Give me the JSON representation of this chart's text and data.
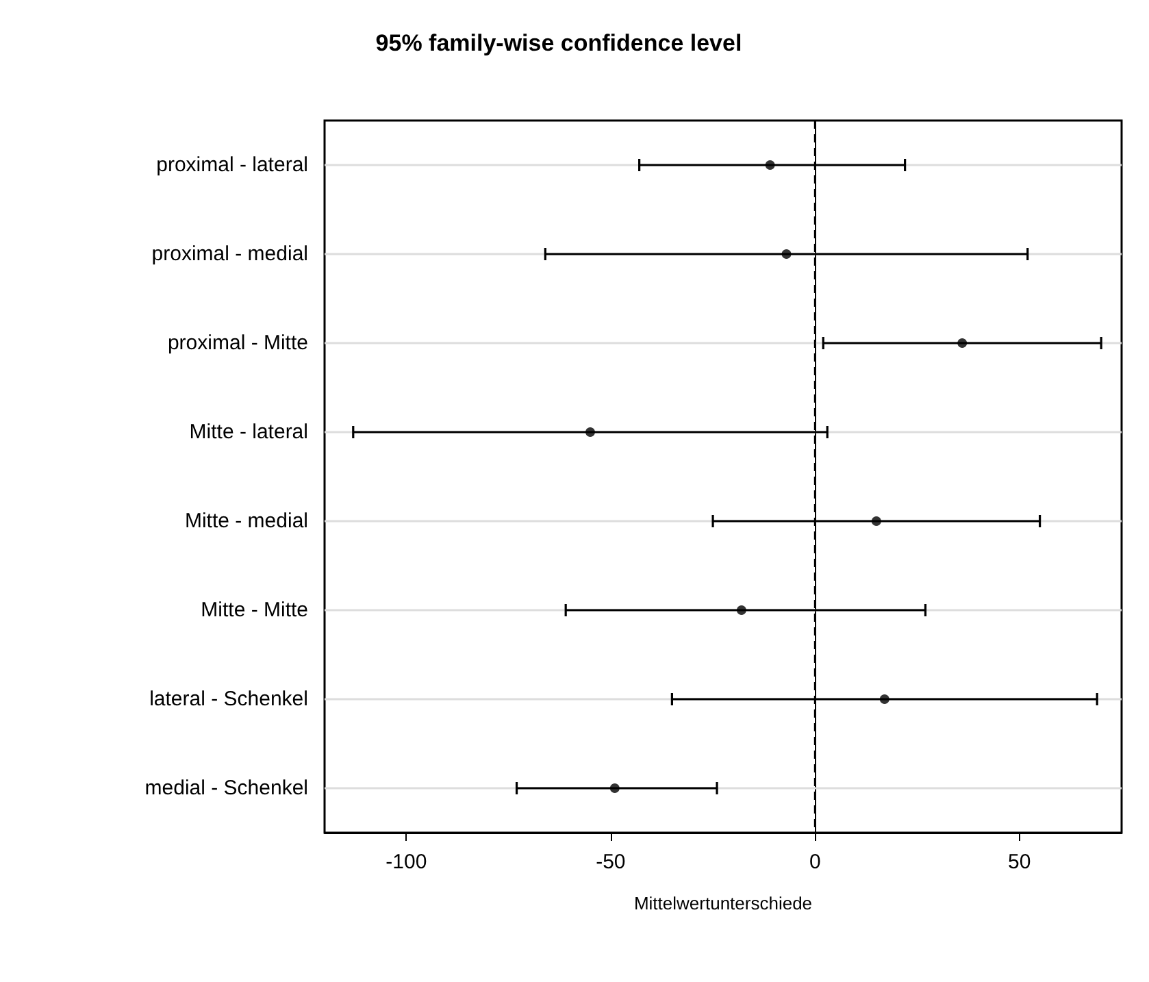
{
  "chart_data": {
    "type": "scatter",
    "orientation": "horizontal",
    "title": "95% family-wise confidence level",
    "xlabel": "Mittelwertunterschiede",
    "categories": [
      "proximal - lateral",
      "proximal - medial",
      "proximal - Mitte",
      "Mitte - lateral",
      "Mitte - medial",
      "Mitte - Mitte",
      "lateral - Schenkel",
      "medial - Schenkel"
    ],
    "values": [
      -11,
      -7,
      36,
      -55,
      15,
      -18,
      17,
      -49
    ],
    "errors": [
      [
        -43,
        22
      ],
      [
        -66,
        52
      ],
      [
        2,
        70
      ],
      [
        -113,
        3
      ],
      [
        -25,
        55
      ],
      [
        -61,
        27
      ],
      [
        -35,
        69
      ],
      [
        -73,
        -24
      ]
    ],
    "color": "#000000",
    "marker": "circle",
    "grid": "y",
    "xlim": [
      -120,
      75
    ],
    "xticks": [
      -100,
      -50,
      0,
      50
    ],
    "ref_lines": [
      {
        "axis": "x",
        "value": 0,
        "line_style": "dashed",
        "color": "#000000"
      }
    ]
  }
}
